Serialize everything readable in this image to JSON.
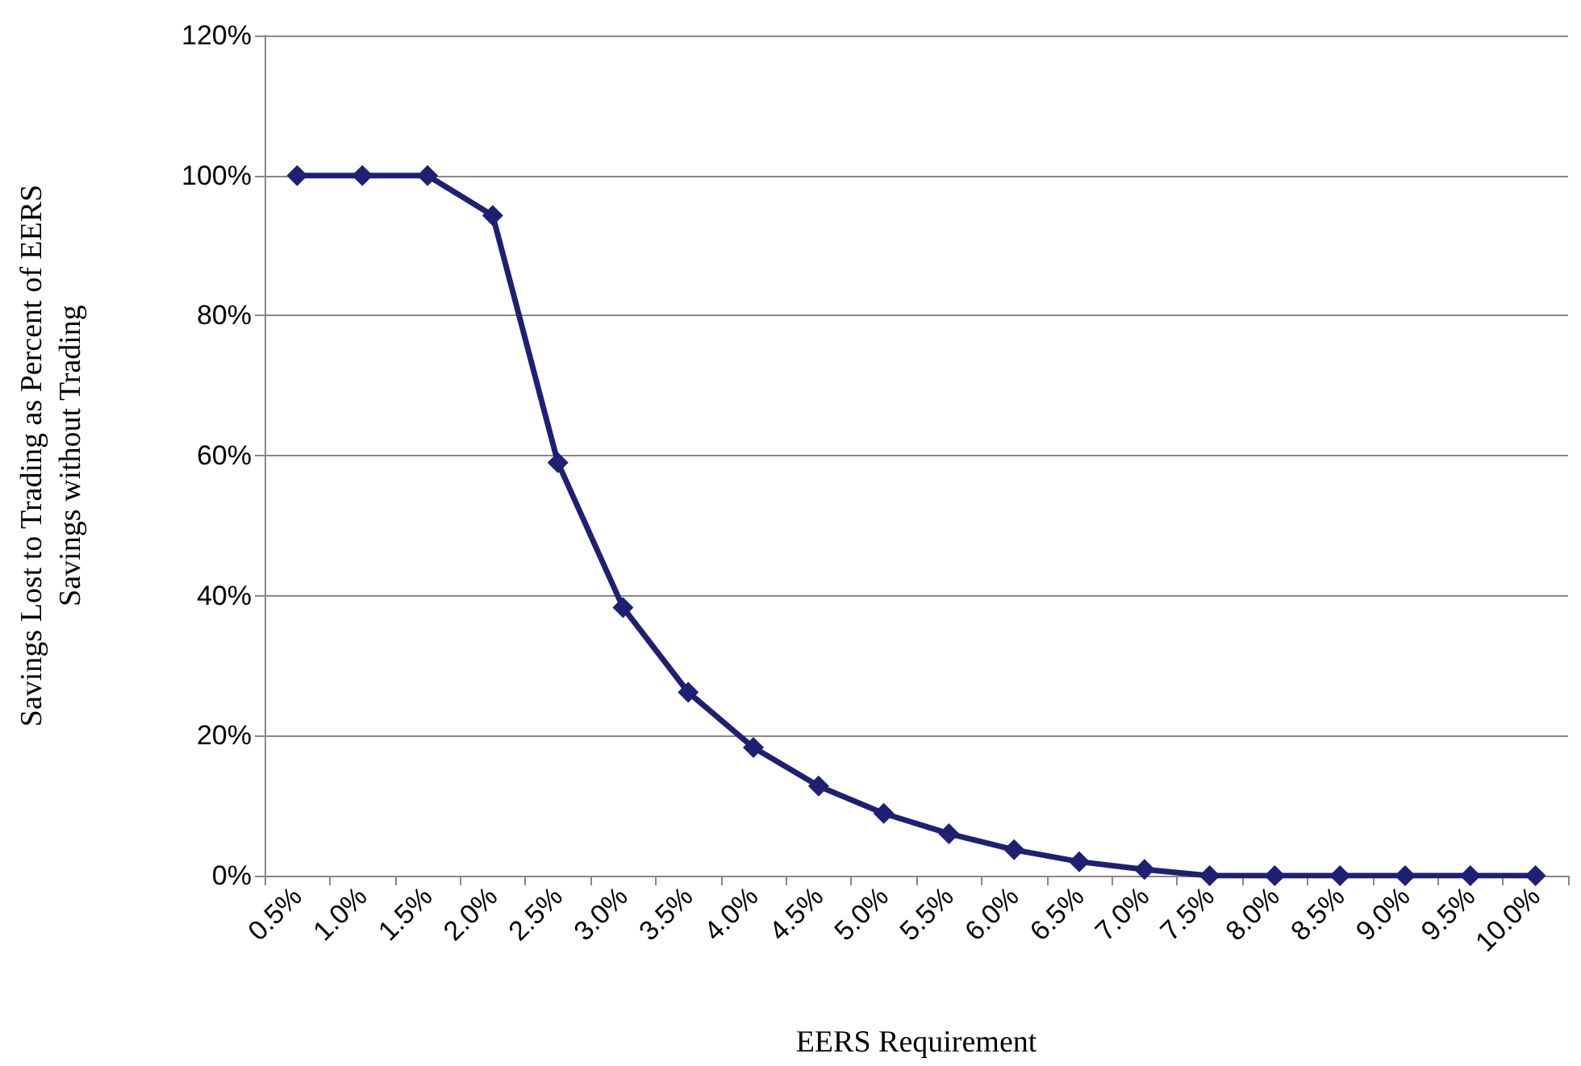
{
  "chart_data": {
    "type": "line",
    "xlabel": "EERS Requirement",
    "ylabel": "Savings Lost to Trading as Percent of EERS\nSavings without Trading",
    "categories": [
      "0.5%",
      "1.0%",
      "1.5%",
      "2.0%",
      "2.5%",
      "3.0%",
      "3.5%",
      "4.0%",
      "4.5%",
      "5.0%",
      "5.5%",
      "6.0%",
      "6.5%",
      "7.0%",
      "7.5%",
      "8.0%",
      "8.5%",
      "9.0%",
      "9.5%",
      "10.0%"
    ],
    "series": [
      {
        "color": "#1f1f73",
        "values": [
          100,
          100,
          100,
          94.3,
          59,
          38.3,
          26.2,
          18.3,
          12.8,
          8.9,
          6,
          3.7,
          2,
          0.9,
          0,
          0,
          0,
          0,
          0,
          0
        ]
      }
    ],
    "ylim": [
      0,
      120
    ],
    "yticks": [
      {
        "value": 0,
        "label": "0%"
      },
      {
        "value": 20,
        "label": "20%"
      },
      {
        "value": 40,
        "label": "40%"
      },
      {
        "value": 60,
        "label": "60%"
      },
      {
        "value": 80,
        "label": "80%"
      },
      {
        "value": 100,
        "label": "100%"
      },
      {
        "value": 120,
        "label": "120%"
      }
    ],
    "grid": "y",
    "marker": "diamond",
    "line_style": "solid"
  }
}
